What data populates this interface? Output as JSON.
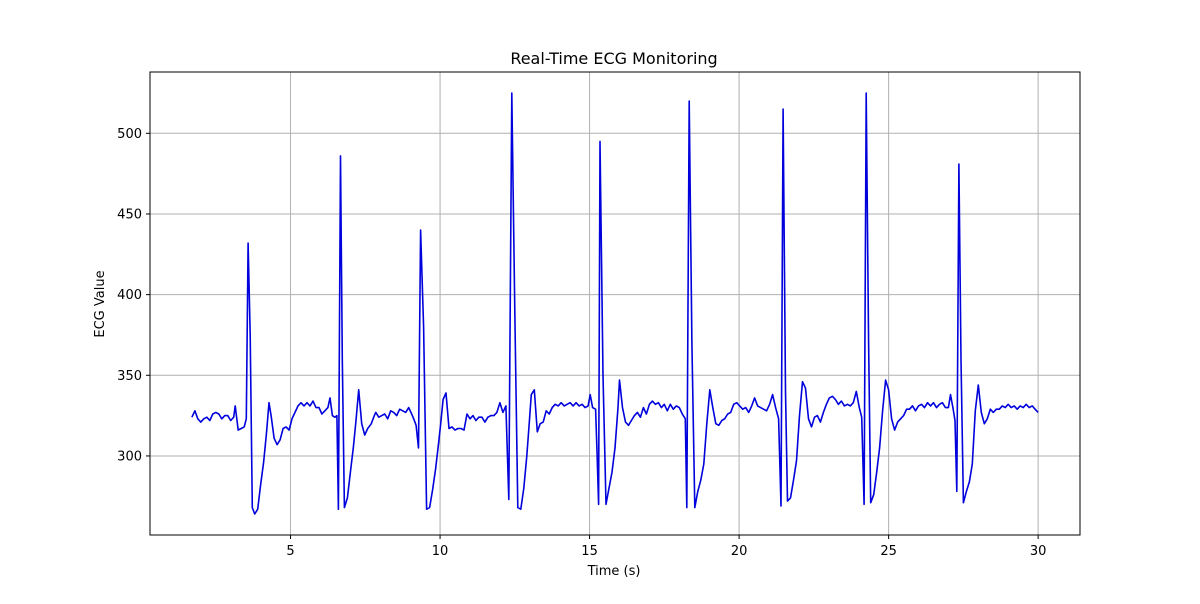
{
  "chart_data": {
    "type": "line",
    "title": "Real-Time ECG Monitoring",
    "xlabel": "Time (s)",
    "ylabel": "ECG Value",
    "xlim": [
      0.3,
      31.4
    ],
    "ylim": [
      251,
      538
    ],
    "xticks": [
      5,
      10,
      15,
      20,
      25,
      30
    ],
    "yticks": [
      300,
      350,
      400,
      450,
      500
    ],
    "grid": true,
    "series": [
      {
        "color": "#0000dd",
        "points": [
          [
            1.7,
            324
          ],
          [
            1.8,
            328
          ],
          [
            1.9,
            323
          ],
          [
            2.0,
            321
          ],
          [
            2.1,
            323
          ],
          [
            2.2,
            324
          ],
          [
            2.3,
            322
          ],
          [
            2.4,
            326
          ],
          [
            2.5,
            327
          ],
          [
            2.6,
            326
          ],
          [
            2.7,
            323
          ],
          [
            2.8,
            325
          ],
          [
            2.9,
            325
          ],
          [
            3.0,
            322
          ],
          [
            3.1,
            324
          ],
          [
            3.15,
            331
          ],
          [
            3.25,
            316
          ],
          [
            3.35,
            317
          ],
          [
            3.45,
            318
          ],
          [
            3.52,
            323
          ],
          [
            3.58,
            432
          ],
          [
            3.65,
            375
          ],
          [
            3.72,
            268
          ],
          [
            3.8,
            264
          ],
          [
            3.9,
            267
          ],
          [
            4.0,
            282
          ],
          [
            4.1,
            296
          ],
          [
            4.2,
            315
          ],
          [
            4.28,
            333
          ],
          [
            4.35,
            325
          ],
          [
            4.45,
            311
          ],
          [
            4.55,
            307
          ],
          [
            4.65,
            310
          ],
          [
            4.75,
            317
          ],
          [
            4.85,
            318
          ],
          [
            4.95,
            316
          ],
          [
            5.05,
            323
          ],
          [
            5.15,
            327
          ],
          [
            5.25,
            331
          ],
          [
            5.35,
            333
          ],
          [
            5.45,
            331
          ],
          [
            5.55,
            333
          ],
          [
            5.65,
            331
          ],
          [
            5.75,
            334
          ],
          [
            5.85,
            330
          ],
          [
            5.95,
            330
          ],
          [
            6.05,
            326
          ],
          [
            6.15,
            328
          ],
          [
            6.25,
            330
          ],
          [
            6.32,
            336
          ],
          [
            6.4,
            325
          ],
          [
            6.48,
            324
          ],
          [
            6.55,
            325
          ],
          [
            6.6,
            267
          ],
          [
            6.67,
            486
          ],
          [
            6.73,
            360
          ],
          [
            6.8,
            268
          ],
          [
            6.9,
            274
          ],
          [
            7.0,
            290
          ],
          [
            7.1,
            305
          ],
          [
            7.18,
            320
          ],
          [
            7.28,
            341
          ],
          [
            7.38,
            320
          ],
          [
            7.48,
            313
          ],
          [
            7.58,
            317
          ],
          [
            7.7,
            320
          ],
          [
            7.8,
            325
          ],
          [
            7.85,
            327
          ],
          [
            7.95,
            324
          ],
          [
            8.05,
            325
          ],
          [
            8.15,
            326
          ],
          [
            8.25,
            323
          ],
          [
            8.35,
            328
          ],
          [
            8.45,
            327
          ],
          [
            8.55,
            325
          ],
          [
            8.65,
            329
          ],
          [
            8.75,
            328
          ],
          [
            8.85,
            327
          ],
          [
            8.95,
            330
          ],
          [
            9.05,
            326
          ],
          [
            9.12,
            323
          ],
          [
            9.2,
            319
          ],
          [
            9.28,
            305
          ],
          [
            9.35,
            440
          ],
          [
            9.45,
            380
          ],
          [
            9.55,
            267
          ],
          [
            9.65,
            268
          ],
          [
            9.75,
            279
          ],
          [
            9.85,
            292
          ],
          [
            9.95,
            308
          ],
          [
            10.02,
            320
          ],
          [
            10.1,
            335
          ],
          [
            10.2,
            339
          ],
          [
            10.3,
            317
          ],
          [
            10.4,
            318
          ],
          [
            10.5,
            316
          ],
          [
            10.6,
            317
          ],
          [
            10.7,
            317
          ],
          [
            10.8,
            316
          ],
          [
            10.9,
            326
          ],
          [
            11.0,
            323
          ],
          [
            11.1,
            325
          ],
          [
            11.2,
            322
          ],
          [
            11.3,
            324
          ],
          [
            11.4,
            324
          ],
          [
            11.5,
            321
          ],
          [
            11.6,
            324
          ],
          [
            11.7,
            325
          ],
          [
            11.8,
            325
          ],
          [
            11.9,
            327
          ],
          [
            12.0,
            333
          ],
          [
            12.1,
            327
          ],
          [
            12.2,
            331
          ],
          [
            12.3,
            273
          ],
          [
            12.4,
            525
          ],
          [
            12.5,
            390
          ],
          [
            12.6,
            268
          ],
          [
            12.7,
            267
          ],
          [
            12.8,
            280
          ],
          [
            12.9,
            300
          ],
          [
            12.98,
            320
          ],
          [
            13.05,
            338
          ],
          [
            13.15,
            341
          ],
          [
            13.25,
            315
          ],
          [
            13.35,
            320
          ],
          [
            13.45,
            321
          ],
          [
            13.55,
            328
          ],
          [
            13.65,
            326
          ],
          [
            13.75,
            330
          ],
          [
            13.85,
            332
          ],
          [
            13.95,
            331
          ],
          [
            14.05,
            333
          ],
          [
            14.15,
            331
          ],
          [
            14.25,
            332
          ],
          [
            14.35,
            333
          ],
          [
            14.45,
            331
          ],
          [
            14.55,
            333
          ],
          [
            14.65,
            331
          ],
          [
            14.75,
            332
          ],
          [
            14.85,
            330
          ],
          [
            14.95,
            331
          ],
          [
            15.02,
            338
          ],
          [
            15.1,
            330
          ],
          [
            15.2,
            329
          ],
          [
            15.25,
            301
          ],
          [
            15.3,
            270
          ],
          [
            15.35,
            495
          ],
          [
            15.45,
            350
          ],
          [
            15.55,
            270
          ],
          [
            15.65,
            280
          ],
          [
            15.75,
            290
          ],
          [
            15.85,
            305
          ],
          [
            15.95,
            330
          ],
          [
            16.0,
            347
          ],
          [
            16.1,
            330
          ],
          [
            16.2,
            321
          ],
          [
            16.3,
            319
          ],
          [
            16.4,
            322
          ],
          [
            16.5,
            325
          ],
          [
            16.6,
            327
          ],
          [
            16.7,
            324
          ],
          [
            16.8,
            330
          ],
          [
            16.9,
            326
          ],
          [
            17.0,
            332
          ],
          [
            17.1,
            334
          ],
          [
            17.2,
            332
          ],
          [
            17.3,
            333
          ],
          [
            17.4,
            330
          ],
          [
            17.5,
            332
          ],
          [
            17.6,
            328
          ],
          [
            17.7,
            332
          ],
          [
            17.8,
            329
          ],
          [
            17.9,
            331
          ],
          [
            18.0,
            330
          ],
          [
            18.1,
            326
          ],
          [
            18.2,
            323
          ],
          [
            18.25,
            268
          ],
          [
            18.33,
            520
          ],
          [
            18.42,
            370
          ],
          [
            18.52,
            268
          ],
          [
            18.62,
            278
          ],
          [
            18.72,
            285
          ],
          [
            18.82,
            295
          ],
          [
            18.92,
            320
          ],
          [
            19.02,
            341
          ],
          [
            19.12,
            330
          ],
          [
            19.22,
            320
          ],
          [
            19.32,
            319
          ],
          [
            19.42,
            322
          ],
          [
            19.52,
            323
          ],
          [
            19.62,
            326
          ],
          [
            19.72,
            327
          ],
          [
            19.82,
            332
          ],
          [
            19.92,
            333
          ],
          [
            20.02,
            331
          ],
          [
            20.12,
            329
          ],
          [
            20.22,
            330
          ],
          [
            20.32,
            327
          ],
          [
            20.42,
            331
          ],
          [
            20.52,
            336
          ],
          [
            20.62,
            331
          ],
          [
            20.72,
            330
          ],
          [
            20.82,
            329
          ],
          [
            20.92,
            328
          ],
          [
            21.02,
            332
          ],
          [
            21.12,
            338
          ],
          [
            21.22,
            330
          ],
          [
            21.32,
            323
          ],
          [
            21.4,
            269
          ],
          [
            21.47,
            515
          ],
          [
            21.55,
            340
          ],
          [
            21.62,
            272
          ],
          [
            21.72,
            274
          ],
          [
            21.82,
            285
          ],
          [
            21.92,
            297
          ],
          [
            22.02,
            325
          ],
          [
            22.12,
            346
          ],
          [
            22.22,
            342
          ],
          [
            22.32,
            323
          ],
          [
            22.42,
            318
          ],
          [
            22.52,
            324
          ],
          [
            22.62,
            325
          ],
          [
            22.72,
            321
          ],
          [
            22.82,
            327
          ],
          [
            22.92,
            332
          ],
          [
            23.02,
            336
          ],
          [
            23.12,
            337
          ],
          [
            23.22,
            335
          ],
          [
            23.32,
            332
          ],
          [
            23.42,
            334
          ],
          [
            23.52,
            331
          ],
          [
            23.62,
            332
          ],
          [
            23.72,
            331
          ],
          [
            23.82,
            333
          ],
          [
            23.92,
            340
          ],
          [
            24.02,
            330
          ],
          [
            24.1,
            324
          ],
          [
            24.18,
            270
          ],
          [
            24.25,
            525
          ],
          [
            24.33,
            370
          ],
          [
            24.4,
            271
          ],
          [
            24.5,
            276
          ],
          [
            24.6,
            290
          ],
          [
            24.7,
            305
          ],
          [
            24.8,
            328
          ],
          [
            24.9,
            347
          ],
          [
            25.0,
            341
          ],
          [
            25.1,
            323
          ],
          [
            25.2,
            316
          ],
          [
            25.3,
            321
          ],
          [
            25.4,
            323
          ],
          [
            25.5,
            325
          ],
          [
            25.6,
            329
          ],
          [
            25.7,
            329
          ],
          [
            25.8,
            331
          ],
          [
            25.9,
            328
          ],
          [
            26.0,
            331
          ],
          [
            26.1,
            332
          ],
          [
            26.2,
            330
          ],
          [
            26.3,
            333
          ],
          [
            26.4,
            331
          ],
          [
            26.5,
            333
          ],
          [
            26.6,
            330
          ],
          [
            26.7,
            332
          ],
          [
            26.8,
            333
          ],
          [
            26.9,
            330
          ],
          [
            27.0,
            330
          ],
          [
            27.07,
            338
          ],
          [
            27.15,
            330
          ],
          [
            27.22,
            322
          ],
          [
            27.28,
            278
          ],
          [
            27.35,
            481
          ],
          [
            27.42,
            360
          ],
          [
            27.5,
            271
          ],
          [
            27.6,
            278
          ],
          [
            27.7,
            284
          ],
          [
            27.8,
            295
          ],
          [
            27.9,
            328
          ],
          [
            28.0,
            344
          ],
          [
            28.1,
            327
          ],
          [
            28.2,
            320
          ],
          [
            28.3,
            323
          ],
          [
            28.4,
            329
          ],
          [
            28.5,
            327
          ],
          [
            28.6,
            329
          ],
          [
            28.7,
            329
          ],
          [
            28.8,
            331
          ],
          [
            28.9,
            330
          ],
          [
            29.0,
            332
          ],
          [
            29.1,
            330
          ],
          [
            29.2,
            331
          ],
          [
            29.3,
            329
          ],
          [
            29.4,
            331
          ],
          [
            29.5,
            330
          ],
          [
            29.6,
            332
          ],
          [
            29.7,
            330
          ],
          [
            29.8,
            331
          ],
          [
            29.9,
            329
          ],
          [
            30.0,
            327
          ]
        ]
      }
    ]
  }
}
